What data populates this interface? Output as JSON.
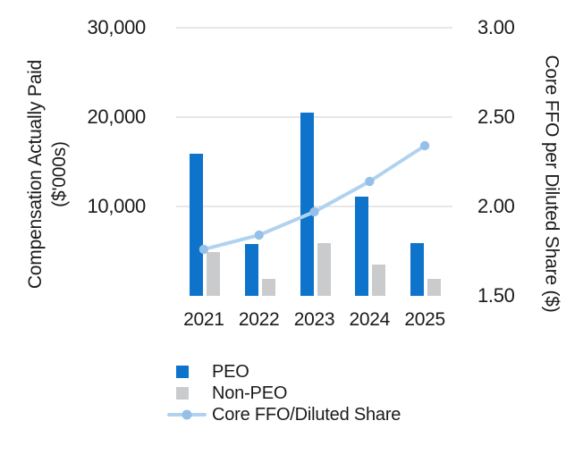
{
  "chart_data": {
    "type": "combo",
    "categories": [
      "2021",
      "2022",
      "2023",
      "2024",
      "2025"
    ],
    "series": [
      {
        "name": "PEO",
        "type": "bar",
        "axis": "left",
        "color": "#0e73ca",
        "values": [
          15900,
          5800,
          20500,
          11100,
          5900
        ]
      },
      {
        "name": "Non-PEO",
        "type": "bar",
        "axis": "left",
        "color": "#c9cbcd",
        "values": [
          4900,
          1900,
          5900,
          3500,
          1900
        ]
      },
      {
        "name": "Core FFO/Diluted Share",
        "type": "line",
        "axis": "right",
        "color": "#b1d2ef",
        "marker_color": "#96c0e8",
        "values": [
          1.76,
          1.84,
          1.97,
          2.14,
          2.34
        ]
      }
    ],
    "left_axis": {
      "label_line1": "Compensation Actually Paid",
      "label_line2": "($'000s)",
      "range": [
        0,
        30000
      ],
      "ticks": [
        {
          "value": 30000,
          "label": "30,000"
        },
        {
          "value": 20000,
          "label": "20,000"
        },
        {
          "value": 10000,
          "label": "10,000"
        }
      ]
    },
    "right_axis": {
      "label": "Core FFO per Diluted Share ($)",
      "range": [
        1.5,
        3.0
      ],
      "ticks": [
        {
          "value": 3.0,
          "label": "3.00"
        },
        {
          "value": 2.5,
          "label": "2.50"
        },
        {
          "value": 2.0,
          "label": "2.00"
        },
        {
          "value": 1.5,
          "label": "1.50"
        }
      ]
    },
    "gridlines": [
      30000,
      20000,
      10000
    ],
    "legend": [
      {
        "label": "PEO",
        "swatch": "square",
        "color": "#0e73ca"
      },
      {
        "label": "Non-PEO",
        "swatch": "square",
        "color": "#c9cbcd"
      },
      {
        "label": "Core FFO/Diluted Share",
        "swatch": "line",
        "color": "#b1d2ef",
        "marker_color": "#96c0e8"
      }
    ]
  },
  "colors": {
    "background": "#ffffff",
    "gridline": "#e7e7e7",
    "text": "#1a1a1a"
  }
}
